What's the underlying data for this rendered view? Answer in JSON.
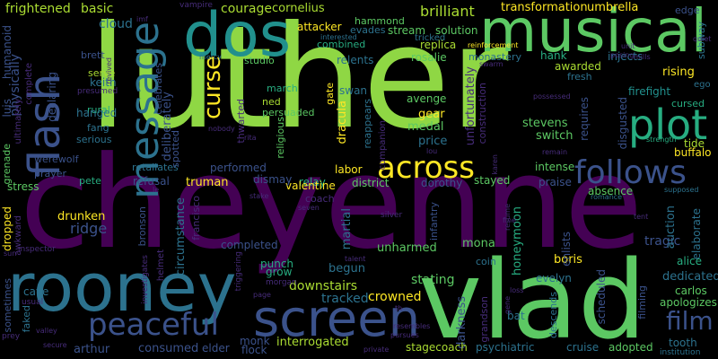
{
  "words": [
    "luther",
    "cheyenne",
    "rooney",
    "vlad",
    "musical",
    "dos",
    "screen",
    "flash",
    "across",
    "follows",
    "plot",
    "message",
    "peaceful",
    "film",
    "curse",
    "frightened",
    "basic",
    "humanoid",
    "cloud",
    "brett",
    "keith",
    "physically",
    "courage",
    "cornelius",
    "vampire",
    "brilliant",
    "hammond",
    "transformation",
    "umbrella",
    "edge",
    "stream",
    "solution",
    "attacker",
    "evades",
    "tricked",
    "interested",
    "combined",
    "replica",
    "reinforcement",
    "monastery",
    "injects",
    "hank",
    "rising",
    "subway",
    "cursed",
    "ego",
    "mercy",
    "posing",
    "studio",
    "rosalie",
    "relents",
    "awarded",
    "fresh",
    "serve",
    "declaring",
    "complete",
    "rural",
    "hanged",
    "luis",
    "fang",
    "serious",
    "werewolf",
    "prayer",
    "grenade",
    "stress",
    "pete",
    "dropped",
    "awkward",
    "march",
    "ned",
    "persuaded",
    "gate",
    "swan",
    "dracula",
    "religious",
    "avenge",
    "gear",
    "medal",
    "price",
    "reappears",
    "stevens",
    "switch",
    "requires",
    "disgusted",
    "firefight",
    "tide",
    "buffalo",
    "strength",
    "unfortunately",
    "possessed",
    "construction",
    "intense",
    "labor",
    "stayed",
    "district",
    "relay",
    "dorothy",
    "praise",
    "absence",
    "supposed",
    "romance",
    "valentine",
    "dismay",
    "performed",
    "retaliates",
    "truman",
    "refusal",
    "spotted",
    "circumstance",
    "bronson",
    "ridge",
    "drunken",
    "completed",
    "coach",
    "seven",
    "stake",
    "martial",
    "talent",
    "unharmed",
    "mona",
    "infantry",
    "honeymoon",
    "tragic",
    "auction",
    "elaborate",
    "alice",
    "dedicated",
    "boris",
    "enlists",
    "evelyn",
    "stating",
    "crowned",
    "tracked",
    "downstairs",
    "punch",
    "grow",
    "morgan",
    "begun",
    "cave",
    "usual",
    "faked",
    "sometimes",
    "arthur",
    "consumed",
    "elder",
    "monk",
    "flock",
    "interrogated",
    "darkness",
    "grandson",
    "coin",
    "psychiatric",
    "cruise",
    "adopted",
    "tooth",
    "stagecoach",
    "descends",
    "bat",
    "carlos",
    "apologizes",
    "institution",
    "secure",
    "private",
    "pursues",
    "valley",
    "prey",
    "inspector",
    "helmet",
    "investigates",
    "page",
    "silver",
    "resume",
    "tent",
    "karen",
    "lou",
    "remain",
    "rita",
    "nobody",
    "thwarted",
    "celebrates",
    "deliberately",
    "presumed",
    "unit",
    "swarm",
    "ultimately",
    "triggering",
    "francisco",
    "filming",
    "loss",
    "resembles",
    "gene",
    "th",
    "le",
    "sun",
    "quiet",
    "revived",
    "imf",
    "mills",
    "scheduled",
    "companion",
    "fine"
  ],
  "palette": {
    "purple": "#440154",
    "indigo": "#472c7a",
    "blue": "#3b528b",
    "steel": "#2c728e",
    "teal": "#21908d",
    "green": "#27ad81",
    "lime": "#5cc863",
    "lightlime": "#aadc32",
    "yellow": "#fde725"
  }
}
